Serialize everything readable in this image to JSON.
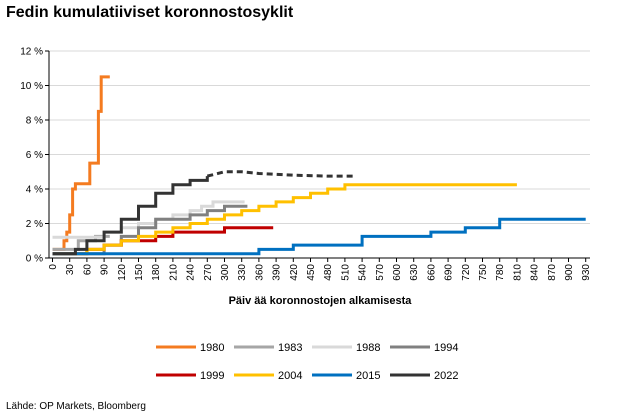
{
  "header": {
    "title": "Fedin kumulatiiviset koronnostosyklit"
  },
  "footer": {
    "source": "Lähde: OP Markets, Bloomberg"
  },
  "chart_data": {
    "type": "line",
    "title": "Fedin kumulatiiviset koronnostosyklit",
    "xlabel": "Päiv ää koronnostojen alkamisesta",
    "ylabel": "",
    "xlim": [
      0,
      940
    ],
    "ylim": [
      0,
      12
    ],
    "xticks": [
      0,
      30,
      60,
      90,
      120,
      150,
      180,
      210,
      240,
      270,
      300,
      330,
      360,
      390,
      420,
      450,
      480,
      510,
      540,
      570,
      600,
      630,
      660,
      690,
      720,
      750,
      780,
      810,
      840,
      870,
      900,
      930
    ],
    "yticks": [
      {
        "value": 0,
        "label": "0 %"
      },
      {
        "value": 2,
        "label": "2 %"
      },
      {
        "value": 4,
        "label": "4 %"
      },
      {
        "value": 6,
        "label": "6 %"
      },
      {
        "value": 8,
        "label": "8 %"
      },
      {
        "value": 10,
        "label": "10 %"
      },
      {
        "value": 12,
        "label": "12 %"
      }
    ],
    "grid": "horizontal",
    "legend": "bottom",
    "series": [
      {
        "name": "1980",
        "color": "#f47b20",
        "x": [
          0,
          15,
          20,
          25,
          30,
          35,
          40,
          45,
          60,
          65,
          75,
          80,
          85,
          100
        ],
        "y": [
          0.5,
          0.5,
          1.0,
          1.5,
          2.5,
          4.0,
          4.3,
          4.3,
          4.3,
          5.5,
          5.5,
          8.5,
          10.5,
          10.5
        ]
      },
      {
        "name": "1983",
        "color": "#a6a6a6",
        "x": [
          0,
          30,
          45,
          60,
          75,
          90,
          100
        ],
        "y": [
          0.5,
          0.5,
          1.0,
          1.0,
          1.25,
          1.25,
          1.25
        ]
      },
      {
        "name": "1988",
        "color": "#d9d9d9",
        "x": [
          0,
          60,
          90,
          120,
          150,
          180,
          210,
          240,
          260,
          280,
          300,
          320,
          335
        ],
        "y": [
          1.2,
          1.2,
          1.5,
          1.75,
          2.0,
          2.25,
          2.5,
          2.75,
          3.0,
          3.25,
          3.25,
          3.25,
          3.25
        ]
      },
      {
        "name": "1994",
        "color": "#808080",
        "x": [
          0,
          30,
          90,
          120,
          150,
          180,
          210,
          240,
          270,
          300,
          340
        ],
        "y": [
          0.25,
          0.25,
          0.75,
          1.25,
          1.75,
          2.25,
          2.25,
          2.5,
          2.75,
          3.0,
          3.0
        ]
      },
      {
        "name": "1999",
        "color": "#c00000",
        "x": [
          0,
          30,
          60,
          90,
          120,
          150,
          180,
          210,
          240,
          270,
          300,
          330,
          360,
          385
        ],
        "y": [
          0.25,
          0.25,
          0.5,
          0.75,
          1.0,
          1.0,
          1.25,
          1.5,
          1.5,
          1.5,
          1.75,
          1.75,
          1.75,
          1.75
        ]
      },
      {
        "name": "2004",
        "color": "#ffc000",
        "x": [
          0,
          30,
          60,
          90,
          120,
          150,
          180,
          210,
          240,
          270,
          300,
          330,
          360,
          390,
          420,
          450,
          480,
          510,
          540,
          570,
          600,
          810
        ],
        "y": [
          0.25,
          0.25,
          0.5,
          0.75,
          1.0,
          1.25,
          1.5,
          1.75,
          2.0,
          2.25,
          2.5,
          2.75,
          3.0,
          3.25,
          3.5,
          3.75,
          4.0,
          4.25,
          4.25,
          4.25,
          4.25,
          4.25
        ]
      },
      {
        "name": "2015",
        "color": "#0070c0",
        "x": [
          0,
          360,
          420,
          540,
          660,
          720,
          780,
          930
        ],
        "y": [
          0.25,
          0.5,
          0.75,
          1.25,
          1.5,
          1.75,
          2.25,
          2.25
        ]
      },
      {
        "name": "2022",
        "color": "#333333",
        "x": [
          0,
          20,
          40,
          60,
          90,
          120,
          150,
          180,
          210,
          240,
          270
        ],
        "y": [
          0.25,
          0.25,
          0.5,
          1.0,
          1.5,
          2.25,
          3.0,
          3.75,
          4.25,
          4.5,
          4.75
        ]
      },
      {
        "name": "",
        "color": "#333333",
        "dashed": true,
        "x": [
          270,
          300,
          330,
          360,
          420,
          480,
          530
        ],
        "y": [
          4.75,
          5.0,
          5.0,
          4.9,
          4.8,
          4.75,
          4.75
        ]
      }
    ]
  }
}
